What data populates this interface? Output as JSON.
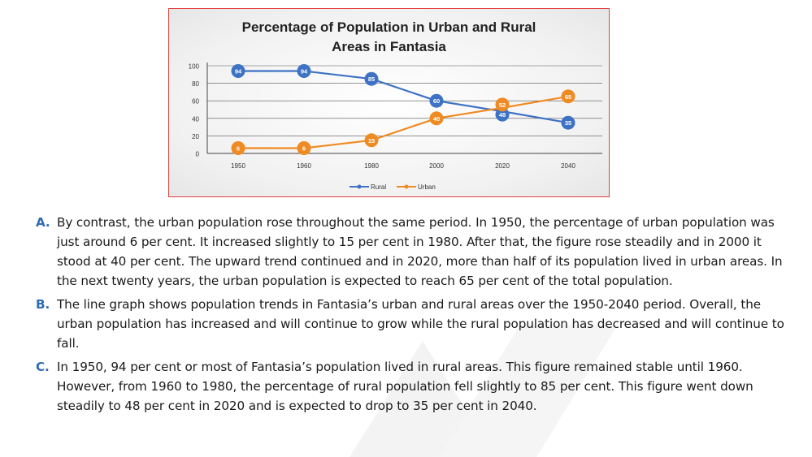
{
  "chart_data": {
    "type": "line",
    "title": "Percentage of Population in Urban and Rural Areas in Fantasia",
    "title_lines": [
      "Percentage of Population in Urban and Rural",
      "Areas in Fantasia"
    ],
    "categories": [
      "1950",
      "1960",
      "1980",
      "2000",
      "2020",
      "2040"
    ],
    "yticks": [
      "0",
      "20",
      "40",
      "60",
      "80",
      "100"
    ],
    "ylim": [
      0,
      100
    ],
    "series": [
      {
        "name": "Rural",
        "values": [
          94,
          94,
          85,
          60,
          48,
          35
        ],
        "labels": [
          "94",
          "94",
          "85",
          "60",
          "48",
          "35"
        ],
        "color": "#3d72c4"
      },
      {
        "name": "Urban",
        "values": [
          6,
          6,
          15,
          40,
          52,
          65
        ],
        "labels": [
          "6",
          "6",
          "15",
          "40",
          "52",
          "65"
        ],
        "color": "#f08a22"
      }
    ],
    "legend": [
      "Rural",
      "Urban"
    ],
    "legend_position": "bottom",
    "grid": true
  },
  "passages": [
    {
      "letter": "A.",
      "text": "By contrast, the urban population rose throughout the same period. In 1950, the percentage of urban population was just around 6 per cent. It increased slightly to 15 per cent in 1980. After that, the figure rose steadily and in 2000 it stood at 40 per cent. The upward trend continued and in 2020, more than half of its population lived in urban areas. In the next twenty years, the urban population is expected to reach 65 per cent of the total population."
    },
    {
      "letter": "B.",
      "text": "The line graph shows population trends in Fantasia’s urban and rural areas over the 1950-2040 period. Overall, the urban population has increased and will continue to grow while the rural population has decreased and will continue to fall."
    },
    {
      "letter": "C.",
      "text": "In 1950, 94 per cent or most of Fantasia’s population lived in rural areas. This figure remained stable until 1960. However, from 1960 to 1980, the percentage of rural population fell slightly to 85 per cent. This figure went down steadily to 48 per cent in 2020 and is expected to drop to 35 per cent in 2040."
    }
  ],
  "colors": {
    "letter": "#2f6bb6",
    "frame": "#e04040",
    "rural": "#3d72c4",
    "urban": "#f08a22"
  }
}
